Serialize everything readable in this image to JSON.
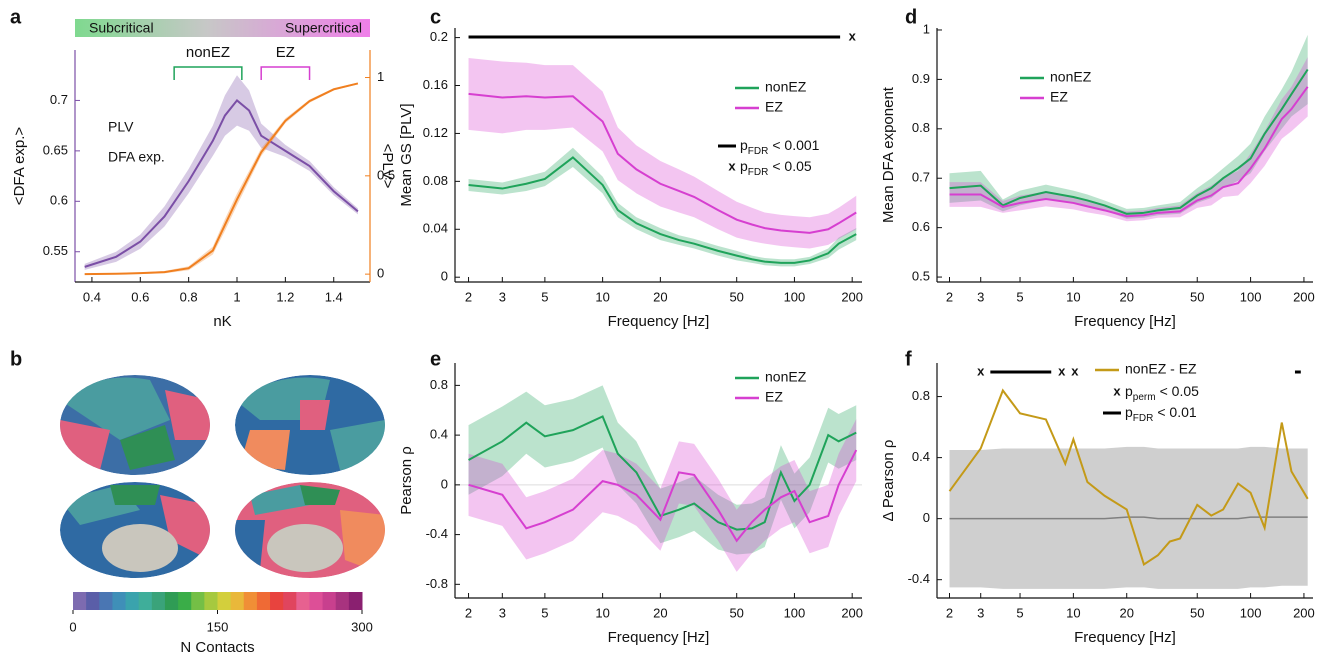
{
  "chart_data": [
    {
      "type": "line",
      "label": "a",
      "phase_labels": [
        "Subcritical",
        "Supercritical"
      ],
      "regions": [
        {
          "label": "nonEZ",
          "from": 0.74,
          "to": 1.02,
          "color": "#1fa35a"
        },
        {
          "label": "EZ",
          "from": 1.1,
          "to": 1.3,
          "color": "#d63fd0"
        }
      ],
      "xlabel": "nK",
      "ylabel": "<DFA exp.>",
      "y2label": "<PLV>",
      "xlim": [
        0.33,
        1.55
      ],
      "xticks": [
        0.4,
        0.6,
        0.8,
        1,
        1.2,
        1.4
      ],
      "ylim": [
        0.52,
        0.75
      ],
      "yticks": [
        0.55,
        0.6,
        0.65,
        0.7
      ],
      "y2lim": [
        -0.04,
        1.14
      ],
      "y2ticks": [
        0,
        0.5,
        1
      ],
      "series": [
        {
          "name": "DFA exp.",
          "color": "#7b4fa6",
          "x": [
            0.37,
            0.5,
            0.6,
            0.7,
            0.8,
            0.9,
            0.95,
            1.0,
            1.05,
            1.1,
            1.2,
            1.3,
            1.4,
            1.5
          ],
          "values": [
            0.535,
            0.545,
            0.56,
            0.585,
            0.62,
            0.66,
            0.685,
            0.7,
            0.69,
            0.665,
            0.65,
            0.635,
            0.61,
            0.59
          ],
          "error": [
            0.003,
            0.005,
            0.007,
            0.01,
            0.012,
            0.015,
            0.02,
            0.025,
            0.02,
            0.012,
            0.006,
            0.005,
            0.004,
            0.003
          ]
        },
        {
          "name": "PLV",
          "color": "#f07f1f",
          "axis": "y2",
          "x": [
            0.37,
            0.5,
            0.6,
            0.7,
            0.8,
            0.9,
            0.95,
            1.0,
            1.05,
            1.1,
            1.2,
            1.3,
            1.4,
            1.5
          ],
          "values": [
            0.0,
            0.002,
            0.005,
            0.01,
            0.03,
            0.12,
            0.25,
            0.38,
            0.5,
            0.62,
            0.78,
            0.88,
            0.94,
            0.97
          ],
          "error": [
            0.003,
            0.003,
            0.004,
            0.006,
            0.01,
            0.02,
            0.03,
            0.03,
            0.025,
            0.02,
            0.012,
            0.008,
            0.006,
            0.004
          ]
        }
      ]
    },
    {
      "type": "image",
      "label": "b",
      "colorbar": {
        "clim": [
          0,
          300
        ],
        "ticks": [
          0,
          150,
          300
        ],
        "label": "N Contacts",
        "colormap": [
          "#7d6bb0",
          "#5a5ea8",
          "#4a76b3",
          "#3f8fb8",
          "#3aa3ad",
          "#3fae9a",
          "#3aa37a",
          "#2f9c55",
          "#3aad48",
          "#74bf46",
          "#a6c93f",
          "#d3cf3c",
          "#e9b83a",
          "#f08f36",
          "#ef6a35",
          "#e8433e",
          "#e0455e",
          "#e76190",
          "#dd4f97",
          "#c8408e",
          "#a8337f",
          "#8a2070"
        ]
      }
    },
    {
      "type": "line",
      "label": "c",
      "xscale": "log",
      "xlabel": "Frequency [Hz]",
      "ylabel": "Mean GS [PLV]",
      "xlim": [
        1.7,
        225
      ],
      "xticks": [
        2,
        3,
        5,
        10,
        20,
        50,
        100,
        200
      ],
      "ylim": [
        -0.004,
        0.208
      ],
      "yticks": [
        0,
        0.04,
        0.08,
        0.12,
        0.16,
        0.2
      ],
      "x": [
        2,
        3,
        4,
        5,
        7,
        10,
        12,
        15,
        20,
        25,
        30,
        40,
        50,
        60,
        70,
        85,
        100,
        120,
        150,
        170,
        210
      ],
      "series": [
        {
          "name": "nonEZ",
          "color": "#1fa35a",
          "values": [
            0.077,
            0.074,
            0.078,
            0.082,
            0.1,
            0.077,
            0.056,
            0.045,
            0.036,
            0.031,
            0.028,
            0.022,
            0.018,
            0.015,
            0.013,
            0.012,
            0.012,
            0.014,
            0.02,
            0.028,
            0.036
          ],
          "error": [
            0.005,
            0.005,
            0.006,
            0.006,
            0.008,
            0.007,
            0.006,
            0.005,
            0.005,
            0.004,
            0.004,
            0.004,
            0.004,
            0.003,
            0.003,
            0.003,
            0.003,
            0.003,
            0.004,
            0.005,
            0.005
          ]
        },
        {
          "name": "EZ",
          "color": "#d63fd0",
          "values": [
            0.153,
            0.15,
            0.151,
            0.15,
            0.151,
            0.13,
            0.103,
            0.09,
            0.078,
            0.072,
            0.067,
            0.056,
            0.048,
            0.044,
            0.041,
            0.039,
            0.038,
            0.037,
            0.04,
            0.045,
            0.054
          ],
          "error": [
            0.03,
            0.03,
            0.028,
            0.027,
            0.026,
            0.025,
            0.022,
            0.02,
            0.019,
            0.018,
            0.017,
            0.016,
            0.015,
            0.014,
            0.013,
            0.013,
            0.013,
            0.013,
            0.013,
            0.013,
            0.014
          ]
        }
      ],
      "sig_marker": "x",
      "sig_lines": [
        [
          2,
          173
        ]
      ],
      "sig_points": [
        200
      ],
      "sig_legend": [
        {
          "kind": "line",
          "p": "p",
          "sub": "FDR",
          "rest": "< 0.001"
        },
        {
          "kind": "marker",
          "p": "p",
          "sub": "FDR",
          "rest": "< 0.05"
        }
      ]
    },
    {
      "type": "line",
      "label": "d",
      "xscale": "log",
      "xlabel": "Frequency [Hz]",
      "ylabel": "Mean DFA exponent",
      "xlim": [
        1.7,
        225
      ],
      "xticks": [
        2,
        3,
        5,
        10,
        20,
        50,
        100,
        200
      ],
      "ylim": [
        0.49,
        1.004
      ],
      "yticks": [
        0.5,
        0.6,
        0.7,
        0.8,
        0.9,
        1
      ],
      "x": [
        2,
        3,
        4,
        5,
        7,
        10,
        12,
        15,
        20,
        25,
        30,
        40,
        50,
        60,
        70,
        85,
        100,
        120,
        150,
        170,
        210
      ],
      "series": [
        {
          "name": "nonEZ",
          "color": "#1fa35a",
          "values": [
            0.68,
            0.685,
            0.645,
            0.66,
            0.672,
            0.662,
            0.655,
            0.645,
            0.628,
            0.63,
            0.635,
            0.64,
            0.665,
            0.68,
            0.7,
            0.72,
            0.74,
            0.79,
            0.84,
            0.87,
            0.92
          ],
          "error": [
            0.03,
            0.03,
            0.012,
            0.015,
            0.015,
            0.013,
            0.012,
            0.01,
            0.01,
            0.01,
            0.01,
            0.012,
            0.015,
            0.02,
            0.02,
            0.025,
            0.03,
            0.035,
            0.04,
            0.045,
            0.07
          ]
        },
        {
          "name": "EZ",
          "color": "#d63fd0",
          "values": [
            0.667,
            0.667,
            0.642,
            0.65,
            0.658,
            0.65,
            0.643,
            0.635,
            0.623,
            0.625,
            0.63,
            0.633,
            0.655,
            0.665,
            0.682,
            0.69,
            0.72,
            0.76,
            0.82,
            0.84,
            0.885
          ],
          "error": [
            0.025,
            0.025,
            0.012,
            0.015,
            0.015,
            0.013,
            0.012,
            0.01,
            0.01,
            0.01,
            0.01,
            0.012,
            0.015,
            0.02,
            0.02,
            0.025,
            0.03,
            0.035,
            0.04,
            0.045,
            0.06
          ]
        }
      ]
    },
    {
      "type": "line",
      "label": "e",
      "xscale": "log",
      "xlabel": "Frequency [Hz]",
      "ylabel": "Pearson ρ",
      "zero_line": true,
      "xlim": [
        1.7,
        225
      ],
      "xticks": [
        2,
        3,
        5,
        10,
        20,
        50,
        100,
        200
      ],
      "ylim": [
        -0.91,
        0.98
      ],
      "yticks": [
        -0.8,
        -0.4,
        0,
        0.4,
        0.8
      ],
      "x": [
        2,
        3,
        4,
        5,
        7,
        10,
        12,
        15,
        20,
        25,
        30,
        40,
        50,
        60,
        70,
        85,
        100,
        120,
        150,
        170,
        210
      ],
      "series": [
        {
          "name": "nonEZ",
          "color": "#1fa35a",
          "values": [
            0.2,
            0.35,
            0.5,
            0.39,
            0.44,
            0.55,
            0.25,
            0.1,
            -0.25,
            -0.2,
            -0.15,
            -0.3,
            -0.36,
            -0.35,
            -0.3,
            0.1,
            -0.13,
            0.0,
            0.4,
            0.35,
            0.42
          ],
          "error": [
            0.28,
            0.28,
            0.25,
            0.25,
            0.25,
            0.25,
            0.25,
            0.25,
            0.22,
            0.22,
            0.22,
            0.22,
            0.2,
            0.2,
            0.2,
            0.22,
            0.22,
            0.22,
            0.22,
            0.22,
            0.22
          ]
        },
        {
          "name": "EZ",
          "color": "#d63fd0",
          "values": [
            0.0,
            -0.08,
            -0.35,
            -0.3,
            -0.2,
            0.03,
            0.0,
            -0.08,
            -0.28,
            0.1,
            0.08,
            -0.2,
            -0.45,
            -0.3,
            -0.2,
            -0.1,
            -0.05,
            -0.3,
            -0.25,
            0.0,
            0.28
          ],
          "error": [
            0.25,
            0.25,
            0.25,
            0.25,
            0.25,
            0.25,
            0.25,
            0.25,
            0.25,
            0.25,
            0.25,
            0.25,
            0.25,
            0.25,
            0.25,
            0.25,
            0.25,
            0.25,
            0.25,
            0.25,
            0.25
          ]
        }
      ]
    },
    {
      "type": "line",
      "label": "f",
      "xscale": "log",
      "xlabel": "Frequency [Hz]",
      "ylabel": "Δ Pearson ρ",
      "xlim": [
        1.7,
        225
      ],
      "xticks": [
        2,
        3,
        5,
        10,
        20,
        50,
        100,
        200
      ],
      "ylim": [
        -0.52,
        1.02
      ],
      "yticks": [
        -0.4,
        0,
        0.4,
        0.8
      ],
      "series": [
        {
          "color": "#808080",
          "x": [
            2,
            3,
            4,
            5,
            7,
            10,
            12,
            15,
            20,
            25,
            30,
            40,
            50,
            60,
            70,
            85,
            100,
            120,
            150,
            170,
            210
          ],
          "values": [
            0,
            0,
            0,
            0,
            0,
            0,
            0,
            0,
            0.01,
            0.01,
            0,
            0,
            0,
            0,
            0,
            0,
            0.01,
            0.01,
            0.01,
            0.01,
            0.01
          ],
          "error": [
            0.45,
            0.45,
            0.46,
            0.46,
            0.46,
            0.46,
            0.46,
            0.46,
            0.46,
            0.46,
            0.46,
            0.46,
            0.46,
            0.46,
            0.46,
            0.46,
            0.46,
            0.46,
            0.45,
            0.45,
            0.45
          ]
        },
        {
          "name": "nonEZ - EZ",
          "color": "#c49a18",
          "x": [
            2,
            3,
            4,
            5,
            7,
            9,
            10,
            12,
            15,
            20,
            25,
            30,
            35,
            40,
            50,
            60,
            70,
            85,
            100,
            120,
            150,
            170,
            210
          ],
          "values": [
            0.18,
            0.46,
            0.84,
            0.69,
            0.65,
            0.36,
            0.52,
            0.24,
            0.15,
            0.06,
            -0.3,
            -0.24,
            -0.15,
            -0.13,
            0.09,
            0.02,
            0.06,
            0.23,
            0.17,
            -0.06,
            0.63,
            0.31,
            0.13
          ]
        }
      ],
      "sig_marker": "x",
      "sig_lines": [
        [
          3.4,
          7.5
        ],
        [
          178,
          192
        ]
      ],
      "sig_points": [
        3,
        8.6,
        10.2
      ],
      "sig_legend": [
        {
          "kind": "marker",
          "p": "p",
          "sub": "perm",
          "rest": "< 0.05"
        },
        {
          "kind": "line",
          "p": "p",
          "sub": "FDR",
          "rest": "< 0.01"
        }
      ]
    }
  ]
}
